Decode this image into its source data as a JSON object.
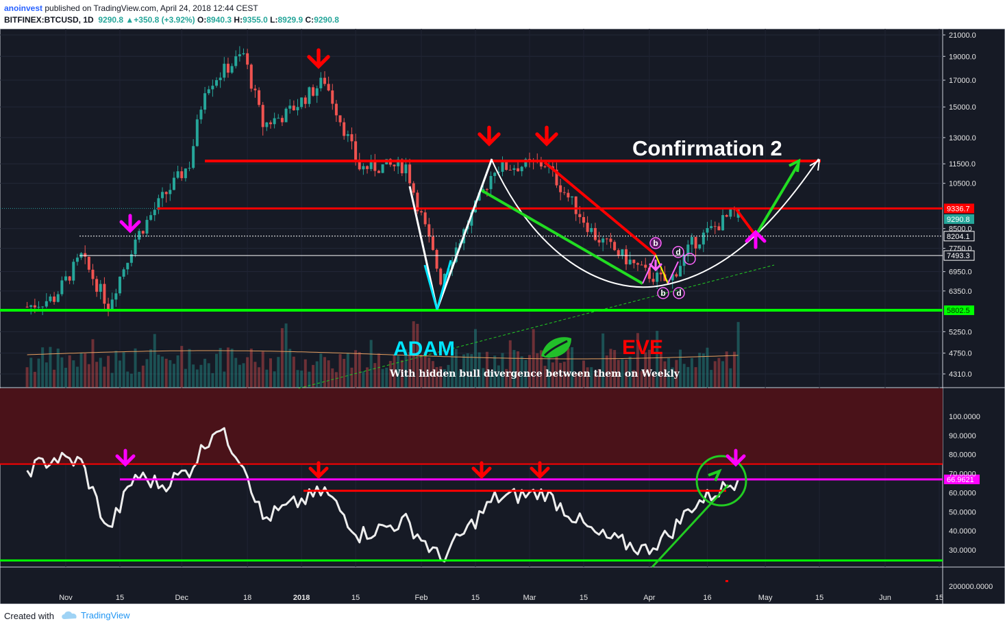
{
  "header": {
    "author": "anoinvest",
    "published": "published on TradingView.com, April 24, 2018 12:44 CEST",
    "symbol": "BITFINEX:BTCUSD, 1D",
    "last": "9290.8",
    "change": "+350.8 (+3.92%)",
    "o_label": "O:",
    "o": "8940.3",
    "h_label": "H:",
    "h": "9355.0",
    "l_label": "L:",
    "l": "8929.9",
    "c_label": "C:",
    "c": "9290.8"
  },
  "footer": {
    "created": "Created with",
    "brand": "TradingView"
  },
  "colors": {
    "bg": "#161a25",
    "up": "#26a69a",
    "down": "#ef5350",
    "red_line": "#ff0000",
    "green_line": "#00ff00",
    "magenta": "#ff00ff",
    "white": "#ffffff",
    "cyan": "#00e5ff",
    "rsi_band": "#4a1219",
    "volume_ma": "#e8a060"
  },
  "annotations": {
    "confirmation": "Confirmation 2",
    "adam": "ADAM",
    "eve": "EVE",
    "divergence": "With hidden bull divergence between them on Weekly",
    "wave_labels": [
      "b",
      "d",
      "b",
      "d"
    ]
  },
  "chart_data": [
    {
      "type": "candlestick",
      "scale": "log",
      "price_axis": [
        "21000.0",
        "19000.0",
        "17000.0",
        "15000.0",
        "13000.0",
        "11500.0",
        "10500.0",
        "8500.0",
        "7750.0",
        "6950.0",
        "6350.0",
        "5250.0",
        "4750.0",
        "4310.0"
      ],
      "price_markers": [
        {
          "label": "9336.7",
          "value": 9336.7,
          "color": "#ff0000"
        },
        {
          "label": "9290.8",
          "value": 9290.8,
          "color": "#26a69a"
        },
        {
          "label": "8204.1",
          "value": 8204.1,
          "color": "#ffffff"
        },
        {
          "label": "7493.3",
          "value": 7493.3,
          "color": "#ffffff"
        },
        {
          "label": "5802.5",
          "value": 5802.5,
          "color": "#00ff00"
        }
      ],
      "horizontal_levels": [
        11650,
        9336.7,
        8204.1,
        7493.3,
        5802.5
      ],
      "x_axis_labels": [
        "Nov",
        "15",
        "Dec",
        "18",
        "2018",
        "15",
        "Feb",
        "15",
        "Mar",
        "15",
        "Apr",
        "16",
        "May",
        "15",
        "Jun",
        "15"
      ],
      "series_anchor_closes": [
        [
          "2017-10-22",
          5900
        ],
        [
          "2017-10-29",
          6150
        ],
        [
          "2017-11-05",
          7450
        ],
        [
          "2017-11-12",
          5950
        ],
        [
          "2017-11-19",
          8100
        ],
        [
          "2017-11-26",
          9800
        ],
        [
          "2017-12-03",
          11500
        ],
        [
          "2017-12-07",
          16500
        ],
        [
          "2017-12-17",
          19200
        ],
        [
          "2017-12-22",
          13800
        ],
        [
          "2017-12-28",
          14500
        ],
        [
          "2018-01-07",
          17000
        ],
        [
          "2018-01-16",
          11300
        ],
        [
          "2018-01-28",
          11400
        ],
        [
          "2018-02-06",
          6700
        ],
        [
          "2018-02-20",
          11300
        ],
        [
          "2018-03-05",
          11500
        ],
        [
          "2018-03-18",
          8200
        ],
        [
          "2018-03-31",
          6900
        ],
        [
          "2018-04-06",
          6600
        ],
        [
          "2018-04-12",
          7900
        ],
        [
          "2018-04-24",
          9290.8
        ]
      ],
      "last": {
        "open": 8940.3,
        "high": 9355.0,
        "low": 8929.9,
        "close": 9290.8
      }
    },
    {
      "type": "line",
      "name": "RSI",
      "y_axis": [
        "100.0000",
        "90.0000",
        "80.0000",
        "70.0000",
        "60.0000",
        "50.0000",
        "40.0000",
        "30.0000",
        "200000.0000"
      ],
      "marker": {
        "label": "66.9621",
        "value": 66.9621
      },
      "levels": {
        "red": 75,
        "magenta": 66.9621,
        "red_resistance": 61,
        "green": 24.5
      },
      "series_anchors": [
        [
          "2017-10-22",
          72
        ],
        [
          "2017-10-29",
          78
        ],
        [
          "2017-11-05",
          76
        ],
        [
          "2017-11-12",
          40
        ],
        [
          "2017-11-19",
          69
        ],
        [
          "2017-11-26",
          64
        ],
        [
          "2017-12-03",
          72
        ],
        [
          "2017-12-10",
          95
        ],
        [
          "2017-12-17",
          76
        ],
        [
          "2017-12-22",
          46
        ],
        [
          "2017-12-28",
          52
        ],
        [
          "2018-01-07",
          61
        ],
        [
          "2018-01-16",
          38
        ],
        [
          "2018-01-28",
          45
        ],
        [
          "2018-02-06",
          25
        ],
        [
          "2018-02-20",
          57
        ],
        [
          "2018-03-05",
          60
        ],
        [
          "2018-03-18",
          38
        ],
        [
          "2018-03-31",
          30
        ],
        [
          "2018-04-06",
          38
        ],
        [
          "2018-04-12",
          53
        ],
        [
          "2018-04-24",
          67
        ]
      ]
    }
  ]
}
